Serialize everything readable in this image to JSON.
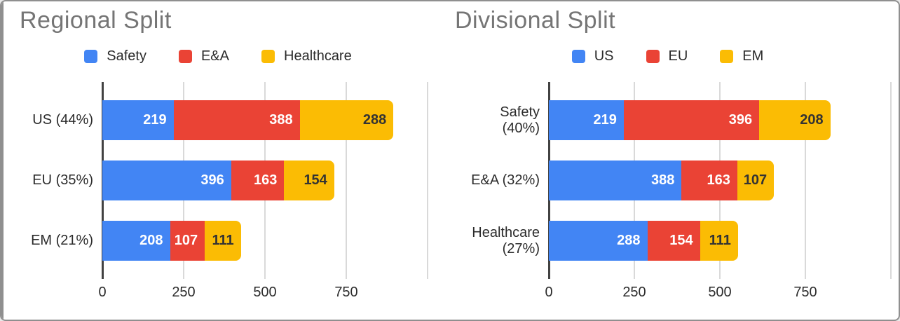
{
  "colors": {
    "background": "#ffffff",
    "chrome_border": "#8f8f8f",
    "title_text": "#757575",
    "label_text": "#2b2b2b",
    "axis_line": "#424242",
    "gridline": "#d9d9d9"
  },
  "chart_data": [
    {
      "type": "bar",
      "orientation": "horizontal",
      "stacked": true,
      "title": "Regional Split",
      "legend_position": "top",
      "legend": [
        "Safety",
        "E&A",
        "Healthcare"
      ],
      "categories": [
        "US (44%)",
        "EU (35%)",
        "EM (21%)"
      ],
      "category_lines": [
        [
          "US (44%)"
        ],
        [
          "EU (35%)"
        ],
        [
          "EM (21%)"
        ]
      ],
      "series": [
        {
          "name": "Safety",
          "color": "#4285F4",
          "label_color": "#ffffff",
          "values": [
            219,
            396,
            208
          ]
        },
        {
          "name": "E&A",
          "color": "#EA4335",
          "label_color": "#ffffff",
          "values": [
            388,
            163,
            107
          ]
        },
        {
          "name": "Healthcare",
          "color": "#FBBC04",
          "label_color": "#333333",
          "values": [
            288,
            154,
            111
          ]
        }
      ],
      "row_totals": [
        895,
        713,
        426
      ],
      "xlim": [
        0,
        1000
      ],
      "x_ticks": [
        0,
        250,
        500,
        750
      ],
      "x_tick_labels": [
        "0",
        "250",
        "500",
        "750"
      ],
      "gridline_values": [
        250,
        500,
        750,
        1000
      ],
      "grid": "vertical"
    },
    {
      "type": "bar",
      "orientation": "horizontal",
      "stacked": true,
      "title": "Divisional Split",
      "legend_position": "top",
      "legend": [
        "US",
        "EU",
        "EM"
      ],
      "categories": [
        "Safety (40%)",
        "E&A (32%)",
        "Healthcare (27%)"
      ],
      "category_lines": [
        [
          "Safety",
          "(40%)"
        ],
        [
          "E&A (32%)"
        ],
        [
          "Healthcare",
          "(27%)"
        ]
      ],
      "series": [
        {
          "name": "US",
          "color": "#4285F4",
          "label_color": "#ffffff",
          "values": [
            219,
            388,
            288
          ]
        },
        {
          "name": "EU",
          "color": "#EA4335",
          "label_color": "#ffffff",
          "values": [
            396,
            163,
            154
          ]
        },
        {
          "name": "EM",
          "color": "#FBBC04",
          "label_color": "#333333",
          "values": [
            208,
            107,
            111
          ]
        }
      ],
      "row_totals": [
        823,
        658,
        553
      ],
      "xlim": [
        0,
        1000
      ],
      "x_ticks": [
        0,
        250,
        500,
        750
      ],
      "x_tick_labels": [
        "0",
        "250",
        "500",
        "750"
      ],
      "gridline_values": [
        250,
        500,
        750,
        1000
      ],
      "grid": "vertical"
    }
  ]
}
